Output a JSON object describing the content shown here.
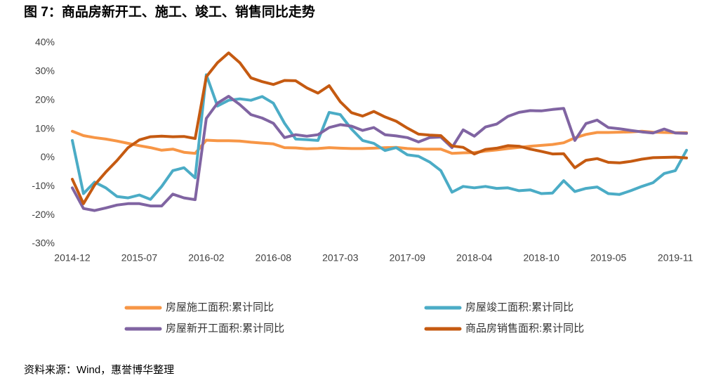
{
  "chart_data": {
    "type": "line",
    "title": "图 7：商品房新开工、施工、竣工、销售同比走势",
    "source": "资料来源：Wind，惠誉博华整理",
    "categories": [
      "2014-12",
      null,
      null,
      null,
      null,
      null,
      "2015-07",
      null,
      null,
      null,
      null,
      null,
      "2016-02",
      null,
      null,
      null,
      null,
      null,
      "2016-08",
      null,
      null,
      null,
      null,
      null,
      "2017-03",
      null,
      null,
      null,
      null,
      null,
      "2017-09",
      null,
      null,
      null,
      null,
      null,
      "2018-04",
      null,
      null,
      null,
      null,
      null,
      "2018-10",
      null,
      null,
      null,
      null,
      null,
      "2019-05",
      null,
      null,
      null,
      null,
      null,
      "2019-11",
      null
    ],
    "series": [
      {
        "name": "房屋施工面积:累计同比",
        "color": "#F79646",
        "values": [
          9.2,
          7.7,
          7.0,
          6.5,
          5.8,
          5.0,
          4.2,
          3.5,
          2.6,
          3.0,
          1.9,
          1.5,
          6.1,
          5.9,
          5.9,
          5.8,
          5.4,
          5.1,
          4.8,
          3.5,
          3.4,
          3.1,
          3.2,
          3.5,
          3.3,
          3.2,
          3.2,
          3.3,
          3.5,
          3.6,
          3.2,
          3.0,
          3.0,
          3.0,
          1.5,
          1.7,
          1.8,
          2.3,
          2.7,
          3.2,
          3.6,
          4.0,
          4.3,
          4.6,
          5.2,
          6.9,
          8.1,
          8.8,
          8.8,
          8.9,
          9.0,
          9.2,
          8.9,
          8.8,
          8.7,
          8.7
        ]
      },
      {
        "name": "房屋竣工面积:累计同比",
        "color": "#4BACC6",
        "values": [
          6.0,
          -12.5,
          -8.5,
          -10.5,
          -13.5,
          -14.0,
          -13.0,
          -14.5,
          -10.0,
          -4.5,
          -3.5,
          -7.0,
          28.9,
          18.0,
          20.0,
          20.5,
          20.0,
          21.3,
          19.0,
          12.0,
          6.5,
          6.3,
          6.0,
          15.8,
          15.0,
          10.0,
          6.0,
          5.0,
          2.5,
          3.5,
          1.0,
          0.5,
          -1.5,
          -4.5,
          -12.0,
          -10.0,
          -10.5,
          -10.0,
          -10.7,
          -10.5,
          -11.5,
          -11.2,
          -12.5,
          -12.3,
          -8.0,
          -11.8,
          -10.7,
          -10.2,
          -12.5,
          -12.8,
          -11.5,
          -10.0,
          -8.7,
          -5.5,
          -4.5,
          2.6
        ]
      },
      {
        "name": "房屋新开工面积:累计同比",
        "color": "#8064A2",
        "values": [
          -10.5,
          -17.7,
          -18.4,
          -17.5,
          -16.5,
          -16.0,
          -16.0,
          -16.8,
          -16.8,
          -12.7,
          -14.0,
          -14.6,
          13.7,
          19.0,
          21.4,
          18.5,
          15.0,
          13.8,
          12.0,
          7.0,
          8.0,
          7.5,
          8.0,
          10.5,
          11.5,
          11.0,
          9.5,
          10.5,
          8.0,
          7.6,
          7.0,
          5.5,
          7.0,
          7.2,
          3.5,
          9.7,
          7.5,
          10.7,
          11.7,
          14.4,
          15.8,
          16.4,
          16.3,
          16.8,
          17.2,
          6.0,
          11.9,
          13.1,
          10.5,
          10.1,
          9.5,
          9.0,
          8.6,
          10.0,
          8.6,
          8.5
        ]
      },
      {
        "name": "商品房销售面积:累计同比",
        "color": "#C55A11",
        "values": [
          -7.5,
          -16.0,
          -9.5,
          -5.0,
          -1.0,
          3.5,
          6.2,
          7.3,
          7.5,
          7.3,
          7.4,
          6.7,
          28.2,
          33.1,
          36.5,
          33.1,
          27.8,
          26.5,
          25.5,
          26.9,
          26.8,
          24.3,
          22.5,
          25.1,
          19.5,
          15.7,
          14.5,
          16.1,
          14.2,
          12.7,
          10.3,
          8.2,
          7.9,
          7.7,
          4.1,
          3.6,
          1.3,
          2.9,
          3.3,
          4.2,
          4.0,
          3.0,
          2.2,
          1.3,
          1.4,
          -3.5,
          -0.9,
          -0.3,
          -1.6,
          -1.8,
          -1.3,
          -0.5,
          0.0,
          0.1,
          0.2,
          -0.1
        ]
      }
    ],
    "ylim": [
      -30,
      40
    ],
    "yticks": [
      {
        "value": -30,
        "label": "-30%"
      },
      {
        "value": -20,
        "label": "-20%"
      },
      {
        "value": -10,
        "label": "-10%"
      },
      {
        "value": 0,
        "label": "0%"
      },
      {
        "value": 10,
        "label": "10%"
      },
      {
        "value": 20,
        "label": "20%"
      },
      {
        "value": 30,
        "label": "30%"
      },
      {
        "value": 40,
        "label": "40%"
      }
    ],
    "grid": false,
    "legend": "bottom"
  }
}
